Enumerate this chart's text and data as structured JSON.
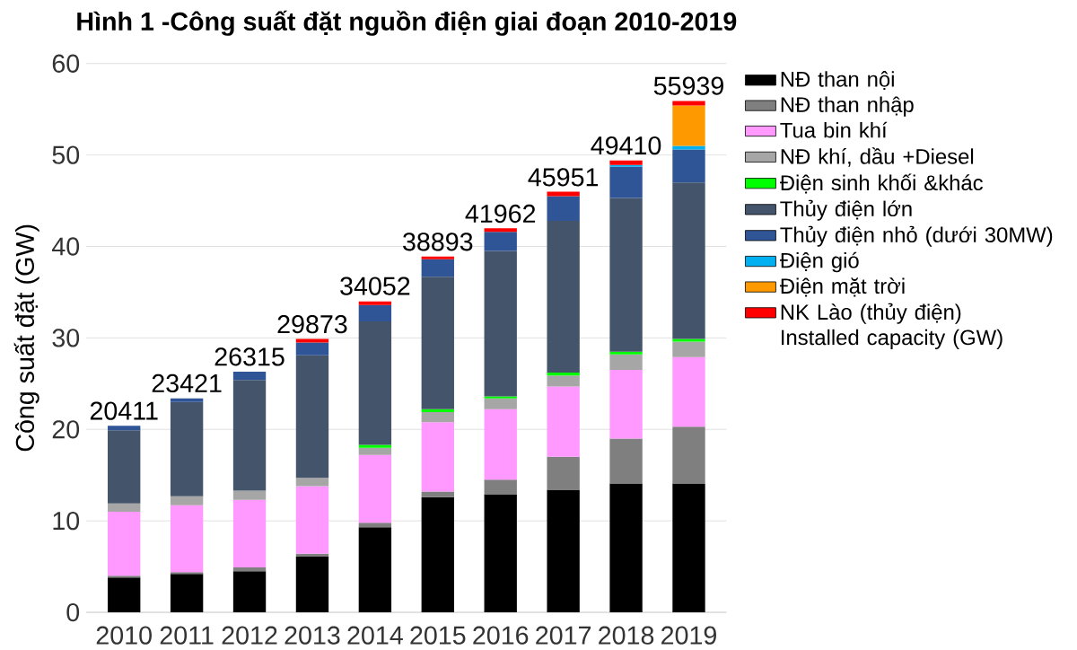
{
  "chart_data": {
    "type": "bar",
    "stacked": true,
    "title": "Hình 1 -Công suất đặt nguồn điện giai đoạn 2010-2019",
    "ylabel": "Công suất đặt (GW)",
    "categories": [
      "2010",
      "2011",
      "2012",
      "2013",
      "2014",
      "2015",
      "2016",
      "2017",
      "2018",
      "2019"
    ],
    "series": [
      {
        "name": "NĐ than nội",
        "color": "#000000",
        "values": [
          3.8,
          4.2,
          4.5,
          6.1,
          9.3,
          12.6,
          12.9,
          13.4,
          14.1,
          14.1
        ]
      },
      {
        "name": "NĐ than nhập",
        "color": "#7f7f7f",
        "values": [
          0.2,
          0.2,
          0.4,
          0.3,
          0.5,
          0.6,
          1.6,
          3.6,
          4.9,
          6.2
        ]
      },
      {
        "name": "Tua bin khí",
        "color": "#ff99ff",
        "values": [
          7.0,
          7.3,
          7.4,
          7.4,
          7.4,
          7.6,
          7.7,
          7.7,
          7.5,
          7.6
        ]
      },
      {
        "name": "NĐ khí, dầu +Diesel",
        "color": "#a6a6a6",
        "values": [
          0.9,
          1.0,
          1.0,
          0.9,
          0.8,
          1.1,
          1.2,
          1.2,
          1.7,
          1.7
        ]
      },
      {
        "name": "Điện sinh khối &khác",
        "color": "#00ff00",
        "values": [
          null,
          null,
          null,
          null,
          0.3,
          0.3,
          0.2,
          0.3,
          0.3,
          0.3
        ]
      },
      {
        "name": "Thủy điện lớn",
        "color": "#44546a",
        "values": [
          8.0,
          10.3,
          12.1,
          13.4,
          13.5,
          14.5,
          15.9,
          16.6,
          16.8,
          17.1
        ]
      },
      {
        "name": "Thủy điện nhỏ (dưới 30MW)",
        "color": "#2f5597",
        "values": [
          0.5,
          0.4,
          0.9,
          1.4,
          1.8,
          1.9,
          2.1,
          2.7,
          3.4,
          3.6
        ]
      },
      {
        "name": "Điện gió",
        "color": "#00b0f0",
        "values": [
          null,
          null,
          null,
          null,
          null,
          null,
          null,
          null,
          0.2,
          0.4
        ]
      },
      {
        "name": "Điện mặt trời",
        "color": "#ff9900",
        "values": [
          null,
          null,
          null,
          null,
          null,
          null,
          null,
          null,
          null,
          4.4
        ]
      },
      {
        "name": "NK Lào (thủy điện)",
        "color": "#ff0000",
        "values": [
          null,
          null,
          null,
          0.4,
          0.4,
          0.3,
          0.4,
          0.5,
          0.5,
          0.5
        ]
      }
    ],
    "annotations": [
      "Installed capacity (GW)",
      {
        "text": "20411",
        "x": "2010",
        "y": 20.411
      },
      {
        "text": "23421",
        "x": "2011",
        "y": 23.421
      },
      {
        "text": "26315",
        "x": "2012",
        "y": 26.315
      },
      {
        "text": "29873",
        "x": "2013",
        "y": 29.873
      },
      {
        "text": "34052",
        "x": "2014",
        "y": 34.052
      },
      {
        "text": "38893",
        "x": "2015",
        "y": 38.893
      },
      {
        "text": "41962",
        "x": "2016",
        "y": 41.962
      },
      {
        "text": "45951",
        "x": "2017",
        "y": 45.951
      },
      {
        "text": "49410",
        "x": "2018",
        "y": 49.41
      },
      {
        "text": "55939",
        "x": "2019",
        "y": 55.939
      }
    ],
    "ylim": [
      0,
      60
    ],
    "yticks": [
      0,
      10,
      20,
      30,
      40,
      50,
      60
    ],
    "grid": "y",
    "legend": "right"
  }
}
